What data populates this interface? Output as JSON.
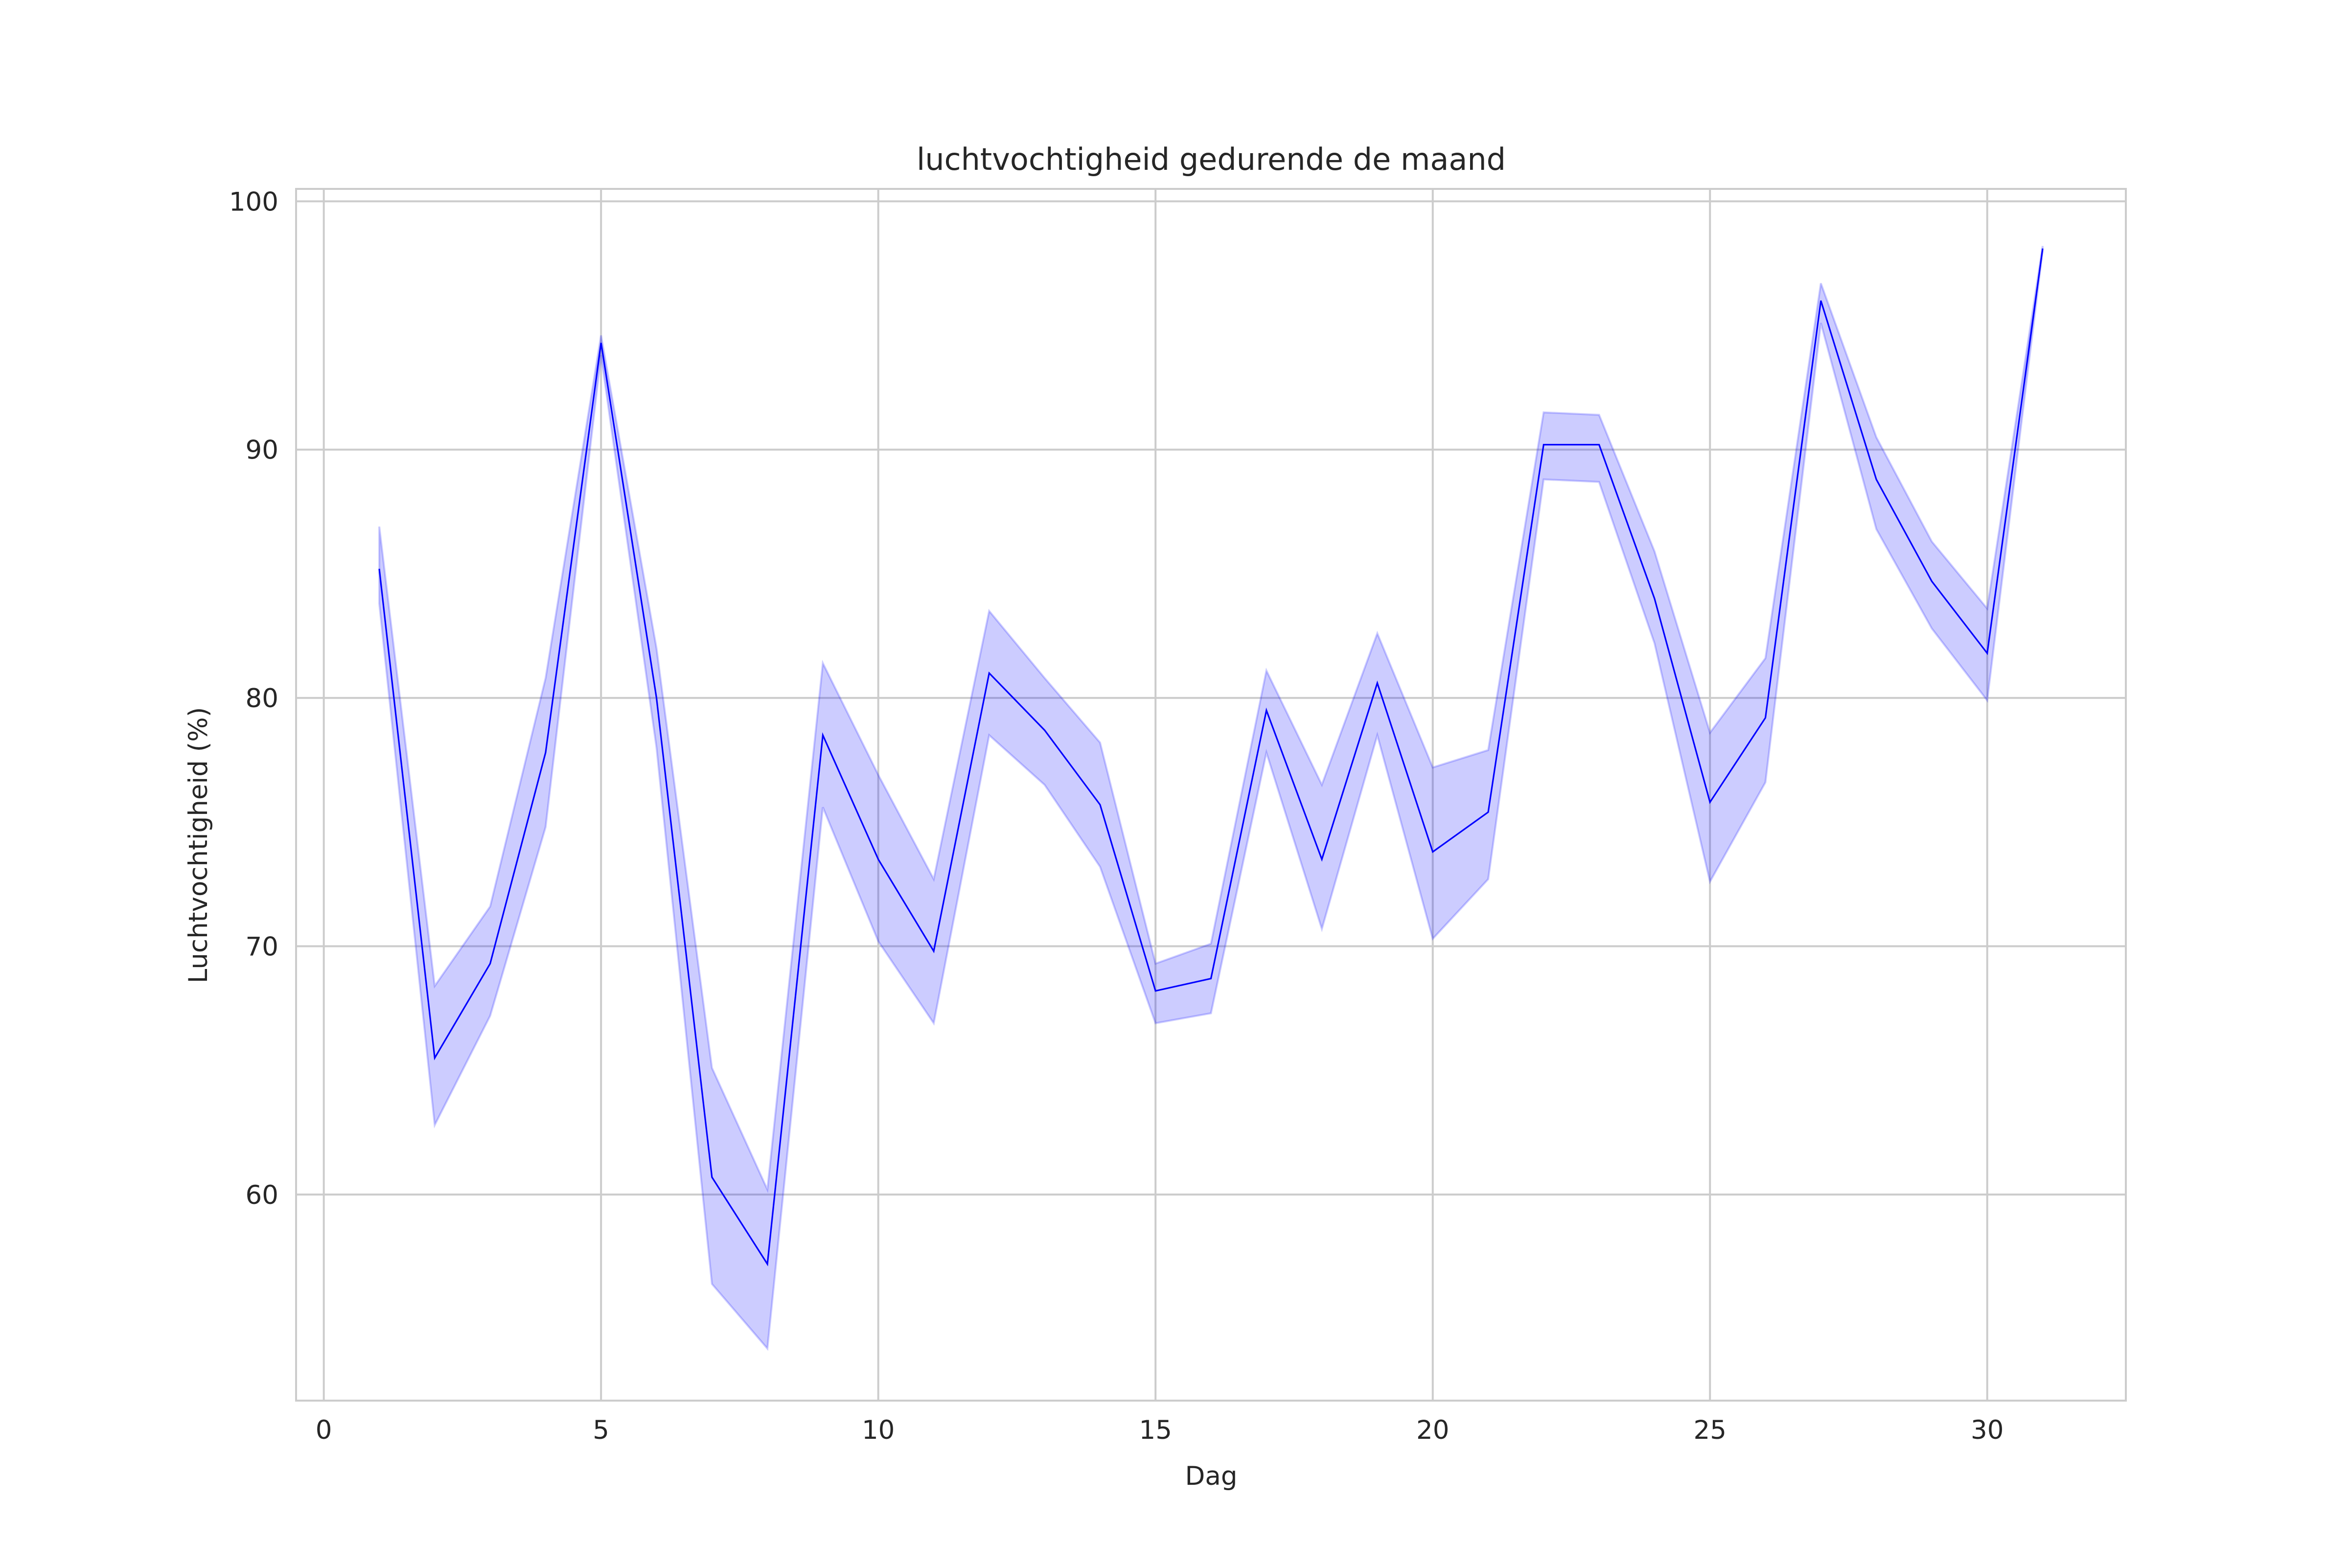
{
  "chart_data": {
    "type": "line",
    "title": "luchtvochtigheid gedurende de maand",
    "xlabel": "Dag",
    "ylabel": "Luchtvochtigheid (%)",
    "xlim": [
      -0.5,
      32.5
    ],
    "ylim": [
      51.7,
      100.5
    ],
    "x_ticks": [
      0,
      5,
      10,
      15,
      20,
      25,
      30
    ],
    "y_ticks": [
      60,
      70,
      80,
      90,
      100
    ],
    "grid": true,
    "legend": "none",
    "line_color": "#0000ff",
    "band_color": "#0000ff",
    "series": [
      {
        "x": [
          1,
          2,
          3,
          4,
          5,
          6,
          7,
          8,
          9,
          10,
          11,
          12,
          13,
          14,
          15,
          16,
          17,
          18,
          19,
          20,
          21,
          22,
          23,
          24,
          25,
          26,
          27,
          28,
          29,
          30,
          31
        ],
        "y": [
          85.2,
          65.5,
          69.3,
          77.8,
          94.3,
          80.0,
          60.7,
          57.2,
          78.5,
          73.5,
          69.8,
          81.0,
          78.7,
          75.7,
          68.2,
          68.7,
          79.5,
          73.5,
          80.6,
          73.8,
          75.4,
          90.2,
          90.2,
          84.0,
          75.8,
          79.2,
          96.0,
          88.8,
          84.7,
          81.8,
          98.1
        ],
        "y_lower": [
          83.8,
          62.8,
          67.2,
          74.8,
          93.8,
          78.0,
          56.4,
          53.8,
          75.6,
          70.2,
          66.9,
          78.5,
          76.5,
          73.2,
          66.9,
          67.3,
          77.8,
          70.7,
          78.5,
          70.3,
          72.7,
          88.8,
          88.7,
          82.2,
          72.6,
          76.6,
          95.1,
          86.8,
          82.8,
          79.9,
          98.0
        ],
        "y_upper": [
          86.9,
          68.4,
          71.6,
          80.8,
          94.6,
          82.0,
          65.1,
          60.2,
          81.4,
          76.9,
          72.7,
          83.5,
          80.8,
          78.2,
          69.3,
          70.1,
          81.1,
          76.5,
          82.6,
          77.2,
          77.9,
          91.5,
          91.4,
          85.9,
          78.6,
          81.6,
          96.7,
          90.5,
          86.3,
          83.6,
          98.2
        ]
      }
    ]
  }
}
